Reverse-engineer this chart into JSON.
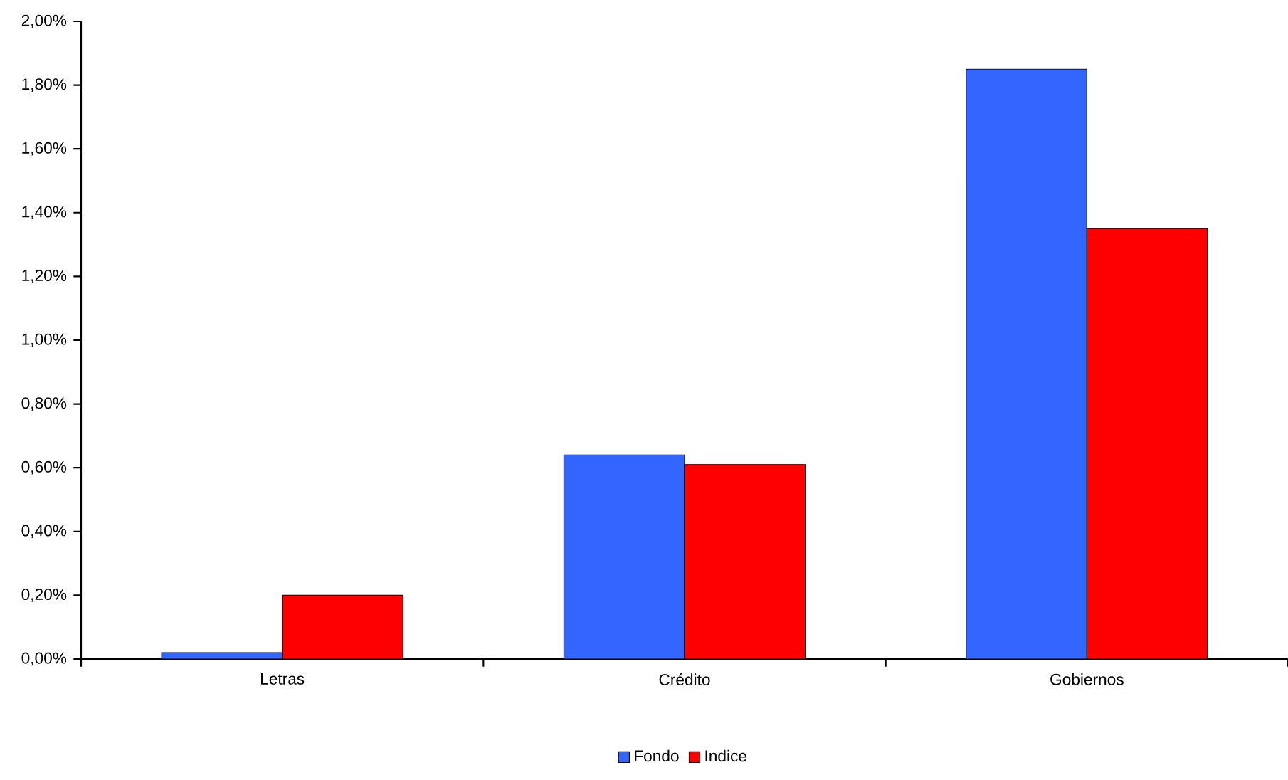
{
  "chart_data": {
    "type": "bar",
    "categories": [
      "Letras",
      "Crédito",
      "Gobiernos"
    ],
    "series": [
      {
        "name": "Fondo",
        "color": "#3366ff",
        "values": [
          0.02,
          0.64,
          1.85
        ]
      },
      {
        "name": "Indice",
        "color": "#ff0000",
        "values": [
          0.2,
          0.61,
          1.35
        ]
      }
    ],
    "ylim": [
      0,
      2
    ],
    "yticks": [
      {
        "value": 0,
        "label": "0,00%"
      },
      {
        "value": 0.2,
        "label": "0,20%"
      },
      {
        "value": 0.4,
        "label": "0,40%"
      },
      {
        "value": 0.6,
        "label": "0,60%"
      },
      {
        "value": 0.8,
        "label": "0,80%"
      },
      {
        "value": 1.0,
        "label": "1,00%"
      },
      {
        "value": 1.2,
        "label": "1,20%"
      },
      {
        "value": 1.4,
        "label": "1,40%"
      },
      {
        "value": 1.6,
        "label": "1,60%"
      },
      {
        "value": 1.8,
        "label": "1,80%"
      },
      {
        "value": 2.0,
        "label": "2,00%"
      }
    ],
    "legend": "bottom"
  }
}
